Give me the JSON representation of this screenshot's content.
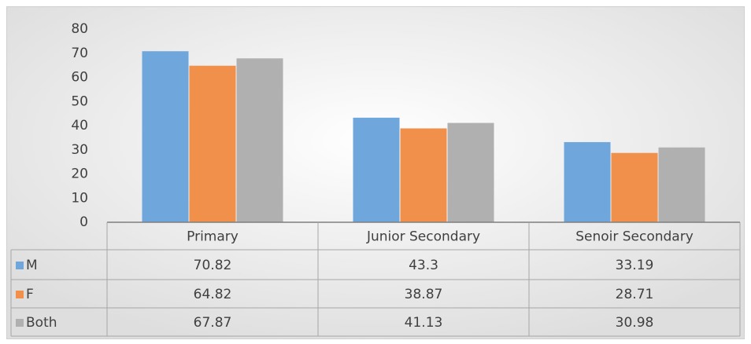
{
  "chart_data": {
    "type": "bar",
    "categories": [
      "Primary",
      "Junior Secondary",
      "Senoir Secondary"
    ],
    "series": [
      {
        "name": "M",
        "color": "#6fa6dc",
        "values": [
          70.82,
          43.3,
          33.19
        ]
      },
      {
        "name": "F",
        "color": "#f0904b",
        "values": [
          64.82,
          38.87,
          28.71
        ]
      },
      {
        "name": "Both",
        "color": "#b0b0b0",
        "values": [
          67.87,
          41.13,
          30.98
        ]
      }
    ],
    "ylim": [
      0,
      80
    ],
    "yticks": [
      0,
      10,
      20,
      30,
      40,
      50,
      60,
      70,
      80
    ],
    "grid": false,
    "data_table": true
  }
}
